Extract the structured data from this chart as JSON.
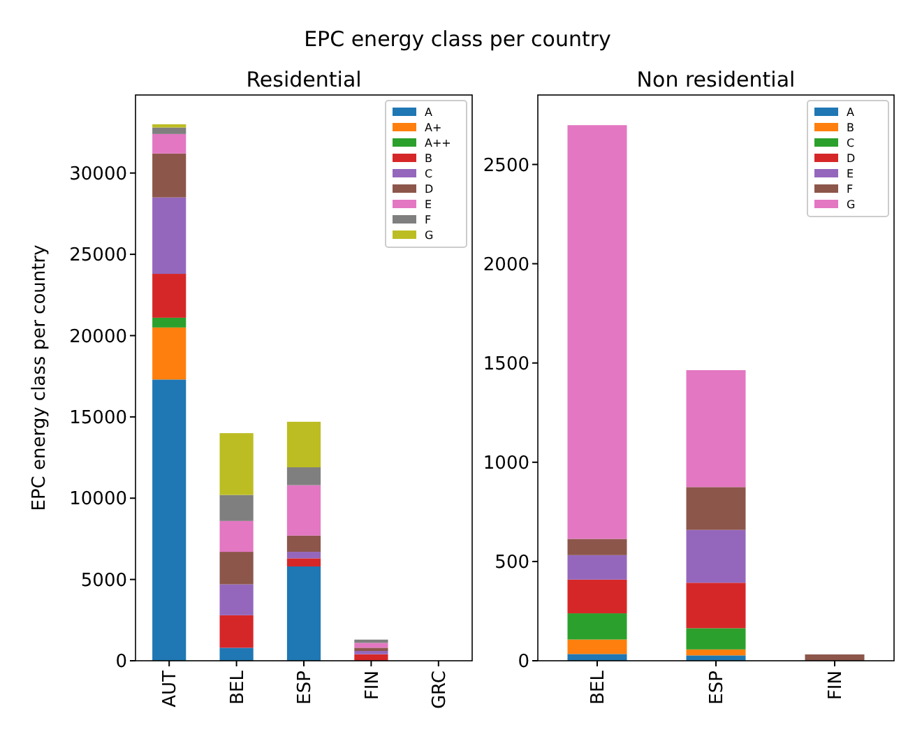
{
  "chart_data": [
    {
      "type": "bar",
      "title": "EPC energy class per country",
      "subtitle": "Residential",
      "ylabel": "EPC energy class per country",
      "stacked": true,
      "legend": "top right",
      "categories": [
        "AUT",
        "BEL",
        "ESP",
        "FIN",
        "GRC"
      ],
      "ylim": [
        0,
        34800
      ],
      "yticks": [
        0,
        5000,
        10000,
        15000,
        20000,
        25000,
        30000
      ],
      "series": [
        {
          "name": "A",
          "color": "#1f77b4",
          "values": [
            17300,
            800,
            5800,
            0,
            0
          ]
        },
        {
          "name": "A+",
          "color": "#ff7f0e",
          "values": [
            3200,
            0,
            0,
            0,
            0
          ]
        },
        {
          "name": "A++",
          "color": "#2ca02c",
          "values": [
            600,
            0,
            0,
            0,
            0
          ]
        },
        {
          "name": "B",
          "color": "#d62728",
          "values": [
            2700,
            2000,
            500,
            400,
            0
          ]
        },
        {
          "name": "C",
          "color": "#9467bd",
          "values": [
            4700,
            1900,
            400,
            200,
            0
          ]
        },
        {
          "name": "D",
          "color": "#8c564b",
          "values": [
            2700,
            2000,
            1000,
            200,
            0
          ]
        },
        {
          "name": "E",
          "color": "#e377c2",
          "values": [
            1200,
            1900,
            3100,
            300,
            0
          ]
        },
        {
          "name": "F",
          "color": "#7f7f7f",
          "values": [
            400,
            1600,
            1100,
            200,
            0
          ]
        },
        {
          "name": "G",
          "color": "#bcbd22",
          "values": [
            200,
            3800,
            2800,
            0,
            0
          ]
        }
      ]
    },
    {
      "type": "bar",
      "title": "Non residential",
      "stacked": true,
      "legend": "top right",
      "categories": [
        "BEL",
        "ESP",
        "FIN"
      ],
      "ylim": [
        0,
        2850
      ],
      "yticks": [
        0,
        500,
        1000,
        1500,
        2000,
        2500
      ],
      "series": [
        {
          "name": "A",
          "color": "#1f77b4",
          "values": [
            34,
            27,
            0
          ]
        },
        {
          "name": "B",
          "color": "#ff7f0e",
          "values": [
            73,
            30,
            0
          ]
        },
        {
          "name": "C",
          "color": "#2ca02c",
          "values": [
            132,
            107,
            0
          ]
        },
        {
          "name": "D",
          "color": "#d62728",
          "values": [
            170,
            229,
            0
          ]
        },
        {
          "name": "E",
          "color": "#9467bd",
          "values": [
            123,
            266,
            0
          ]
        },
        {
          "name": "F",
          "color": "#8c564b",
          "values": [
            82,
            216,
            32
          ]
        },
        {
          "name": "G",
          "color": "#e377c2",
          "values": [
            2084,
            589,
            0
          ]
        }
      ]
    }
  ]
}
